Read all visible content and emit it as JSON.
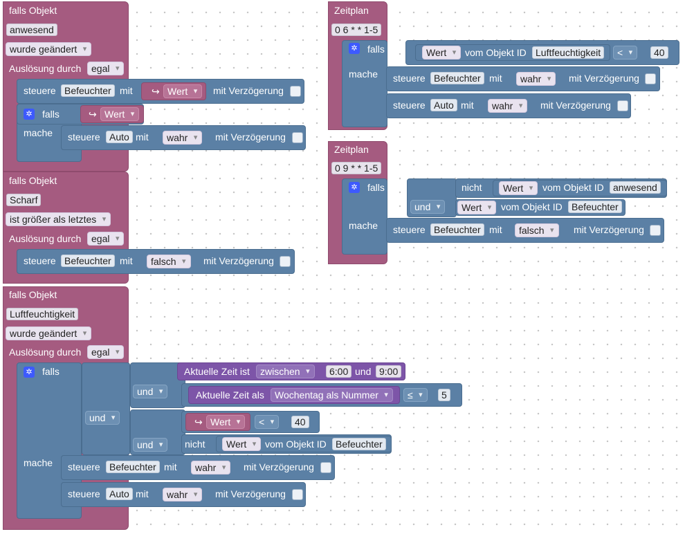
{
  "trig1": {
    "header": "falls Objekt",
    "object": "anwesend",
    "event": "wurde geändert",
    "trigger_label": "Auslösung durch",
    "trigger": "egal"
  },
  "trig1_control": {
    "verb": "steuere",
    "object": "Befeuchter",
    "mit": "mit",
    "value_icon": "↪",
    "value": "Wert",
    "delay": "mit Verzögerung"
  },
  "trig1_if": {
    "falls": "falls",
    "mache": "mache",
    "cond_icon": "↪",
    "cond": "Wert",
    "verb": "steuere",
    "object": "Auto",
    "mit": "mit",
    "value": "wahr",
    "delay": "mit Verzögerung"
  },
  "trig2": {
    "header": "falls Objekt",
    "object": "Scharf",
    "event": "ist größer als letztes",
    "trigger_label": "Auslösung durch",
    "trigger": "egal",
    "verb": "steuere",
    "target": "Befeuchter",
    "mit": "mit",
    "value": "falsch",
    "delay": "mit Verzögerung"
  },
  "trig3": {
    "header": "falls Objekt",
    "object": "Luftfeuchtigkeit",
    "event": "wurde geändert",
    "trigger_label": "Auslösung durch",
    "trigger": "egal",
    "falls": "falls",
    "mache": "mache",
    "und1": "und",
    "und2": "und",
    "und3": "und",
    "time_label": "Aktuelle Zeit ist",
    "time_op": "zwischen",
    "time_from": "6:00",
    "time_and": "und",
    "time_to": "9:00",
    "day_label": "Aktuelle Zeit als",
    "day_op": "Wochentag als Nummer",
    "day_cmp": "≤",
    "day_val": "5",
    "val_icon": "↪",
    "val": "Wert",
    "val_cmp": "<",
    "val_num": "40",
    "not_label": "nicht",
    "not_val": "Wert",
    "not_obj_label": "vom Objekt ID",
    "not_obj": "Befeuchter",
    "act1_verb": "steuere",
    "act1_obj": "Befeuchter",
    "act1_mit": "mit",
    "act1_val": "wahr",
    "act1_delay": "mit Verzögerung",
    "act2_verb": "steuere",
    "act2_obj": "Auto",
    "act2_mit": "mit",
    "act2_val": "wahr",
    "act2_delay": "mit Verzögerung"
  },
  "sched1": {
    "header": "Zeitplan",
    "cron": "0 6 * * 1-5",
    "falls": "falls",
    "mache": "mache",
    "c_val": "Wert",
    "c_obj_label": "vom Objekt ID",
    "c_obj": "Luftfeuchtigkeit",
    "c_cmp": "<",
    "c_num": "40",
    "a1_verb": "steuere",
    "a1_obj": "Befeuchter",
    "a1_mit": "mit",
    "a1_val": "wahr",
    "a1_delay": "mit Verzögerung",
    "a2_verb": "steuere",
    "a2_obj": "Auto",
    "a2_mit": "mit",
    "a2_val": "wahr",
    "a2_delay": "mit Verzögerung"
  },
  "sched2": {
    "header": "Zeitplan",
    "cron": "0 9 * * 1-5",
    "falls": "falls",
    "mache": "mache",
    "not_label": "nicht",
    "n_val": "Wert",
    "n_obj_label": "vom Objekt ID",
    "n_obj": "anwesend",
    "und": "und",
    "u_val": "Wert",
    "u_obj_label": "vom Objekt ID",
    "u_obj": "Befeuchter",
    "a_verb": "steuere",
    "a_obj": "Befeuchter",
    "a_mit": "mit",
    "a_val": "falsch",
    "a_delay": "mit Verzögerung"
  },
  "icons": {
    "gear": "gear-icon",
    "arrow": "arrow-return-icon",
    "dropdown": "chevron-down-icon"
  },
  "colors": {
    "trigger": "#a55b80",
    "logic": "#5b80a5",
    "time": "#7d55a8",
    "workspace": "#ffffff"
  }
}
